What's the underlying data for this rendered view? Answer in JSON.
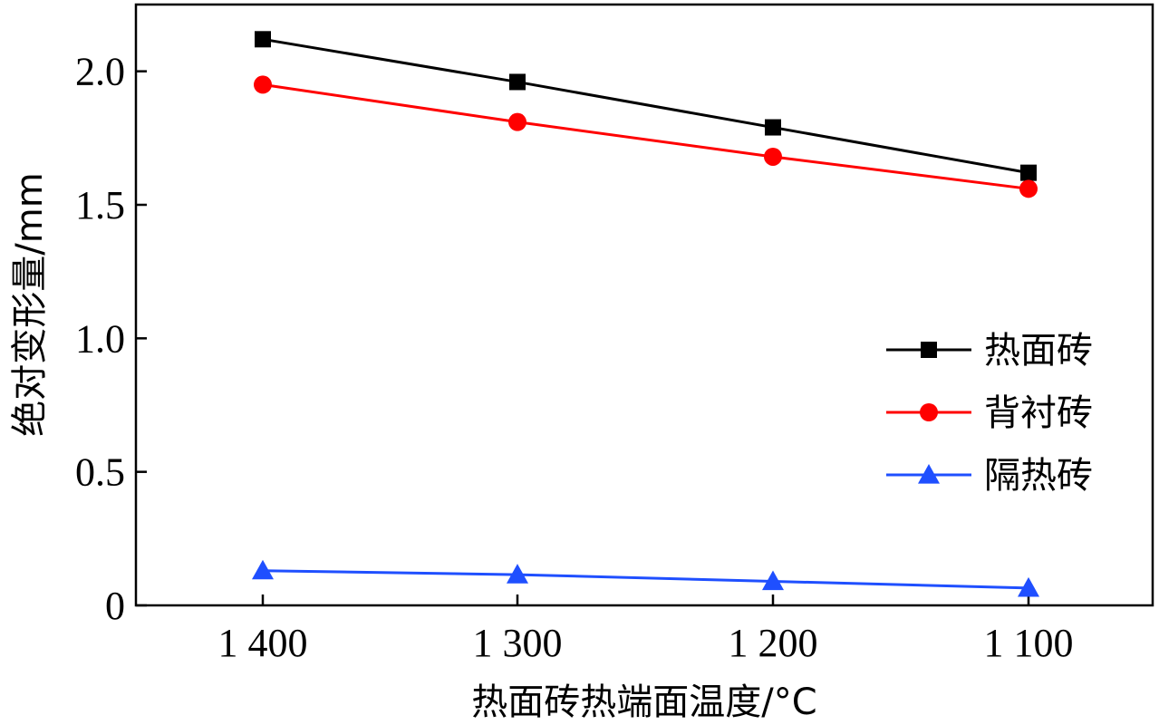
{
  "chart_data": {
    "type": "line",
    "categories": [
      "1 400",
      "1 300",
      "1 200",
      "1 100"
    ],
    "xlabel": "热面砖热端面温度/°C",
    "ylabel": "绝对变形量/mm",
    "ylim": [
      0,
      2.25
    ],
    "yticks": [
      0,
      0.5,
      1.0,
      1.5,
      2.0
    ],
    "ytick_labels": [
      "0",
      "0.5",
      "1.0",
      "1.5",
      "2.0"
    ],
    "grid": false,
    "legend_position": "center-right",
    "series": [
      {
        "name": "热面砖",
        "values": [
          2.12,
          1.96,
          1.79,
          1.62
        ],
        "color": "#000000",
        "marker": "square"
      },
      {
        "name": "背衬砖",
        "values": [
          1.95,
          1.81,
          1.68,
          1.56
        ],
        "color": "#ff0000",
        "marker": "circle"
      },
      {
        "name": "隔热砖",
        "values": [
          0.13,
          0.115,
          0.09,
          0.065
        ],
        "color": "#1f4fff",
        "marker": "triangle"
      }
    ]
  }
}
